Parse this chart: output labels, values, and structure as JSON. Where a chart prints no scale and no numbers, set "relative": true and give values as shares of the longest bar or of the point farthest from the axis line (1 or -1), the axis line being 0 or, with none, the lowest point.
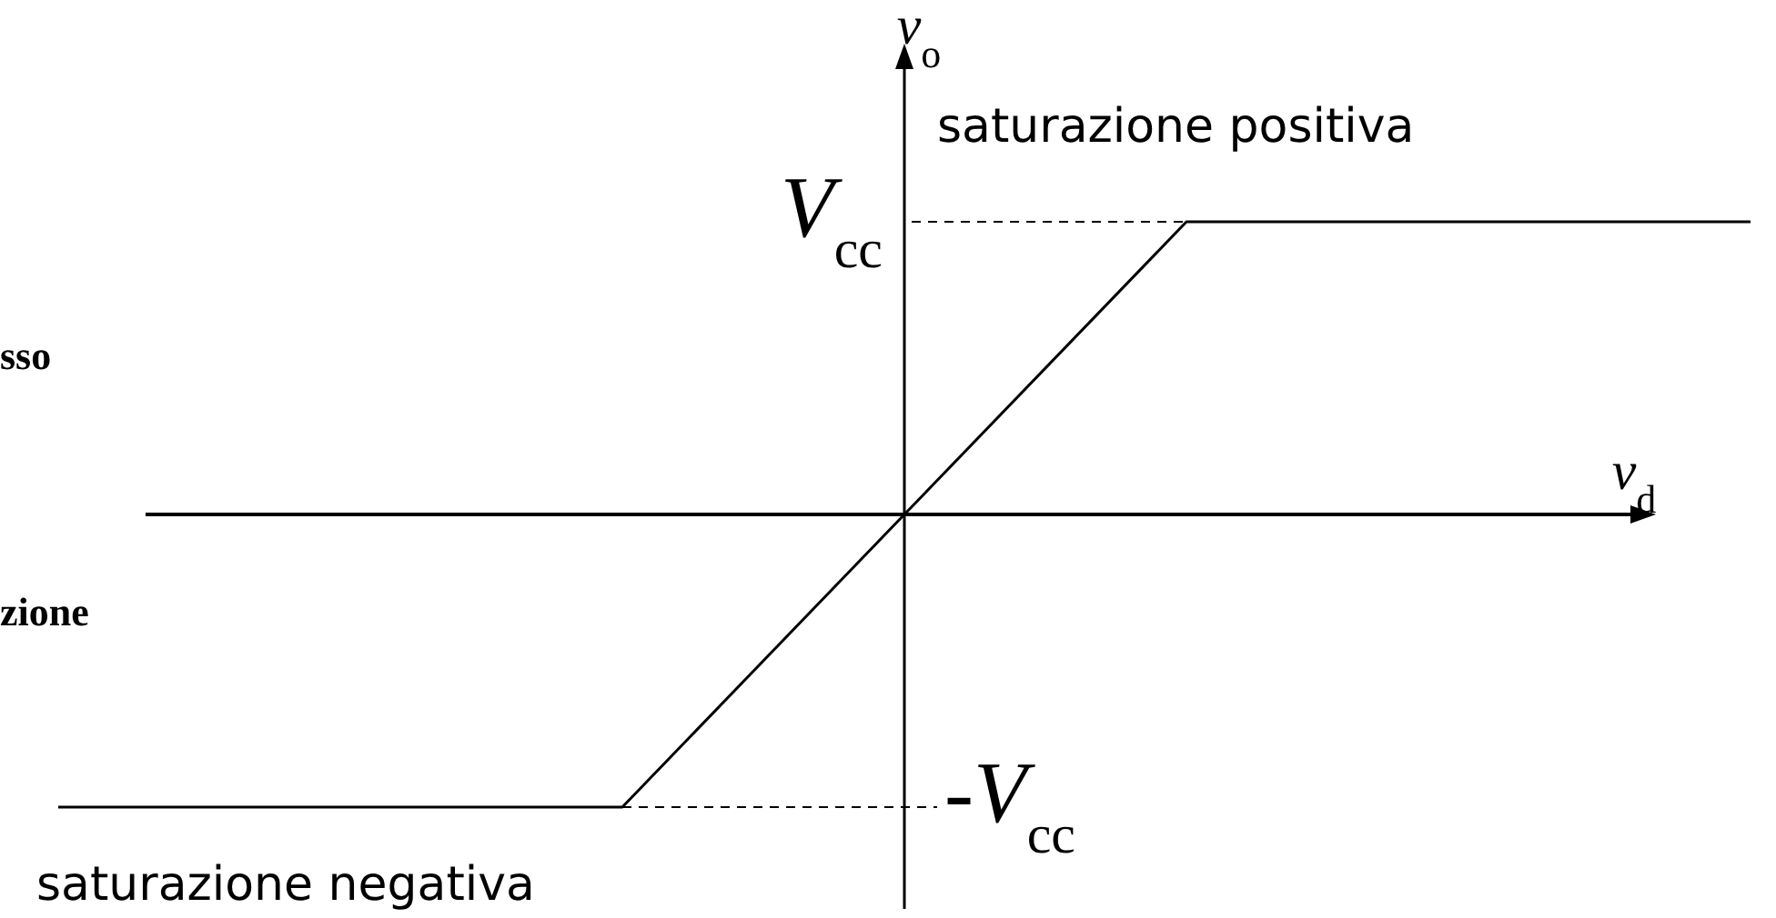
{
  "chart_data": {
    "type": "line",
    "relative": true,
    "categories": [
      null,
      null,
      null,
      null,
      null,
      null,
      null
    ],
    "series": [
      {
        "color": "#000000",
        "values": [
          -1,
          -1,
          -1,
          0,
          1,
          1,
          1
        ]
      }
    ],
    "line_style": "solid",
    "marker": "none",
    "grid": false,
    "xlabel": "v$_{d}$",
    "ylabel": "v$_{o}$",
    "ref_lines": [
      {
        "axis": "y",
        "value": 1,
        "label": "V$_{cc}$",
        "line_style": "dashed"
      },
      {
        "axis": "y",
        "value": -1,
        "label": "-V$_{cc}$",
        "line_style": "dashed"
      }
    ],
    "annotations": [
      "saturazione positiva",
      "saturazione negativa",
      "sso",
      "zione"
    ]
  }
}
